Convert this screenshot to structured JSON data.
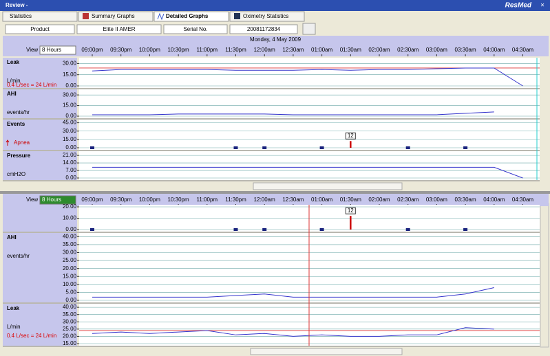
{
  "window": {
    "title": "Review -",
    "brand": "ResMed",
    "close": "×"
  },
  "tabs": [
    "Statistics",
    "Summary Graphs",
    "Detailed Graphs",
    "Oximetry Statistics"
  ],
  "info": {
    "product_label": "Product",
    "product": "Elite II AMER",
    "serial_label": "Serial No.",
    "serial": "20081172834"
  },
  "date": "Monday, 4 May 2009",
  "times": [
    "09:00pm",
    "09:30pm",
    "10:00pm",
    "10:30pm",
    "11:00pm",
    "11:30pm",
    "12:00am",
    "12:30am",
    "01:00am",
    "01:30am",
    "02:00am",
    "02:30am",
    "03:00am",
    "03:30am",
    "04:00am",
    "04:30am"
  ],
  "panes": [
    {
      "view_label": "View",
      "view": "8 Hours",
      "panels": [
        {
          "kind": "line",
          "title": "Leak",
          "unit": "L/min",
          "note": "0.4 L/sec = 24 L/min",
          "threshold": 24,
          "color": "#3333cc",
          "ylim": [
            0,
            35
          ],
          "yticks": [
            {
              "value": 0,
              "label": "0.00"
            },
            {
              "value": 15,
              "label": "15.00"
            },
            {
              "value": 30,
              "label": "30.00"
            }
          ],
          "values": [
            20,
            22,
            22,
            22,
            22,
            21,
            21,
            21,
            22,
            21,
            22,
            22,
            23,
            24,
            24,
            0
          ]
        },
        {
          "kind": "line",
          "title": "AHI",
          "unit": "events/hr",
          "color": "#3333cc",
          "ylim": [
            0,
            35
          ],
          "yticks": [
            {
              "value": 0,
              "label": "0.00"
            },
            {
              "value": 15,
              "label": "15.00"
            },
            {
              "value": 30,
              "label": "30.00"
            }
          ],
          "values": [
            2,
            2,
            2,
            3,
            3,
            3,
            3,
            2,
            2,
            2,
            2,
            2,
            2,
            4,
            6,
            null
          ]
        },
        {
          "kind": "events",
          "title": "Events",
          "unit": "Apnea",
          "color": "#1a237e",
          "ylim": [
            0,
            47
          ],
          "yticks": [
            {
              "value": 0,
              "label": "0.00"
            },
            {
              "value": 15,
              "label": "15.00"
            },
            {
              "value": 30,
              "label": "30.00"
            },
            {
              "value": 45,
              "label": "45.00"
            }
          ],
          "values": [
            0,
            null,
            null,
            null,
            null,
            0,
            0,
            null,
            0,
            12,
            null,
            0,
            null,
            0,
            null,
            null
          ]
        },
        {
          "kind": "line",
          "title": "Pressure",
          "unit": "cmH2O",
          "color": "#3333cc",
          "ylim": [
            0,
            23
          ],
          "yticks": [
            {
              "value": 0,
              "label": "0.00"
            },
            {
              "value": 7,
              "label": "7.00"
            },
            {
              "value": 14,
              "label": "14.00"
            },
            {
              "value": 21,
              "label": "21.00"
            }
          ],
          "values": [
            10,
            10,
            10,
            10,
            10,
            10,
            10,
            10,
            10,
            10,
            10,
            10,
            10,
            10,
            10,
            0
          ]
        }
      ]
    },
    {
      "view_label": "View",
      "view": "8 Hours",
      "panels": [
        {
          "kind": "events",
          "color": "#1a237e",
          "ylim": [
            0,
            20
          ],
          "yticks": [
            {
              "value": 0,
              "label": "0.00"
            },
            {
              "value": 10,
              "label": "10.00"
            },
            {
              "value": 20,
              "label": "20.00"
            }
          ],
          "values": [
            0,
            null,
            null,
            null,
            null,
            0,
            0,
            null,
            0,
            12,
            null,
            0,
            null,
            0,
            null,
            null
          ]
        },
        {
          "kind": "line",
          "title": "AHI",
          "unit": "events/hr",
          "color": "#3333cc",
          "ylim": [
            0,
            41
          ],
          "yticks": [
            {
              "value": 0,
              "label": "0.00"
            },
            {
              "value": 5,
              "label": "5.00"
            },
            {
              "value": 10,
              "label": "10.00"
            },
            {
              "value": 15,
              "label": "15.00"
            },
            {
              "value": 20,
              "label": "20.00"
            },
            {
              "value": 25,
              "label": "25.00"
            },
            {
              "value": 30,
              "label": "30.00"
            },
            {
              "value": 35,
              "label": "35.00"
            },
            {
              "value": 40,
              "label": "40.00"
            }
          ],
          "values": [
            2,
            2,
            2,
            2,
            2,
            3,
            4,
            2,
            2,
            2,
            2,
            2,
            2,
            4,
            8,
            null
          ]
        },
        {
          "kind": "line",
          "title": "Leak",
          "unit": "L/min",
          "note": "0.4 L/sec = 24 L/min",
          "threshold": 24,
          "color": "#3333cc",
          "ylim": [
            15,
            41
          ],
          "yticks": [
            {
              "value": 15,
              "label": "15.00"
            },
            {
              "value": 20,
              "label": "20.00"
            },
            {
              "value": 25,
              "label": "25.00"
            },
            {
              "value": 30,
              "label": "30.00"
            },
            {
              "value": 35,
              "label": "35.00"
            },
            {
              "value": 40,
              "label": "40.00"
            }
          ],
          "values": [
            22,
            23,
            22,
            23,
            24,
            21,
            22,
            20,
            21,
            20,
            20,
            21,
            21,
            26,
            25,
            null
          ]
        }
      ]
    }
  ]
}
